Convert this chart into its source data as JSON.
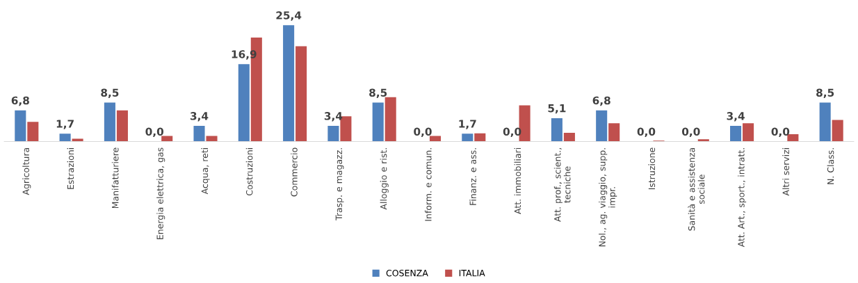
{
  "chart_data": {
    "type": "bar",
    "categories": [
      "Agricoltura",
      "Estrazioni",
      "Manifatturiere",
      "Energia elettrica, gas",
      "Acqua, reti",
      "Costruzioni",
      "Commercio",
      "Trasp. e magazz.",
      "Alloggio e rist.",
      "Inform. e comun.",
      "Finanz. e ass.",
      "Att. immobiliari",
      "Att. prof., scient.,\ntecniche",
      "Nol., ag. viaggio, supp.\nimpr.",
      "Istruzione",
      "Sanità e assistenza\nsociale",
      "Att. Art., sport., intratt.",
      "Altri servizi",
      "N. Class."
    ],
    "series": [
      {
        "name": "COSENZA",
        "color": "#4f81bd",
        "values": [
          6.8,
          1.7,
          8.5,
          0.0,
          3.4,
          16.9,
          25.4,
          3.4,
          8.5,
          0.0,
          1.7,
          0.0,
          5.1,
          6.8,
          0.0,
          0.0,
          3.4,
          0.0,
          8.5
        ],
        "value_labels": [
          "6,8",
          "1,7",
          "8,5",
          "0,0",
          "3,4",
          "16,9",
          "25,4",
          "3,4",
          "8,5",
          "0,0",
          "1,7",
          "0,0",
          "5,1",
          "6,8",
          "0,0",
          "0,0",
          "3,4",
          "0,0",
          "8,5"
        ]
      },
      {
        "name": "ITALIA",
        "color": "#c0504d",
        "values": [
          4.3,
          0.6,
          6.8,
          1.2,
          1.2,
          22.7,
          20.8,
          5.5,
          9.7,
          1.2,
          1.8,
          7.9,
          1.9,
          4.0,
          0.2,
          0.5,
          4.0,
          1.6,
          4.7
        ]
      }
    ],
    "legend": "bottom",
    "grid": false
  }
}
